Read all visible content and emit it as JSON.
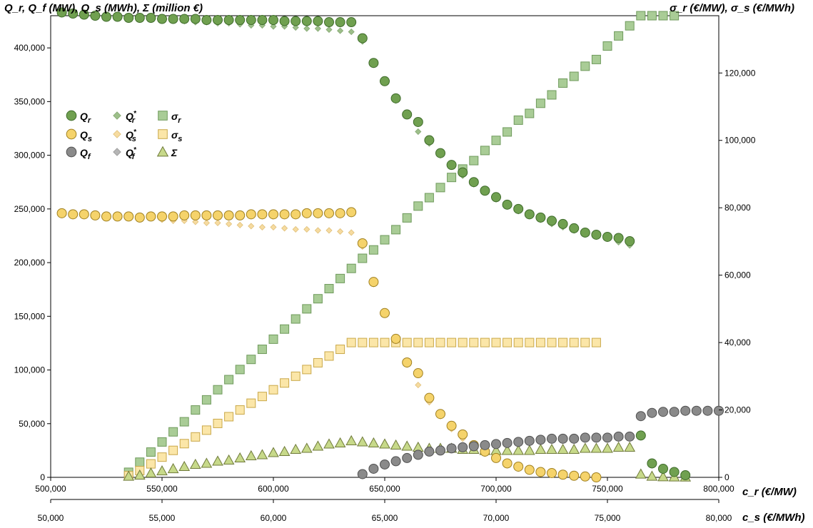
{
  "chart_data": {
    "type": "scatter",
    "left_axis_label": "Q_r, Q_f (MW), Q_s (MWh), Σ (million €)",
    "right_axis_label": "σ_r (€/MW), σ_s (€/MWh)",
    "x_primary_label": "c_r (€/MW)",
    "x_secondary_label": "c_s (€/MWh)",
    "x_primary_range": [
      500000,
      800000
    ],
    "x_secondary_range": [
      50000,
      80000
    ],
    "y_left_range": [
      0,
      430000
    ],
    "y_right_range": [
      0,
      137000
    ],
    "x_primary_ticks": [
      "500,000",
      "550,000",
      "600,000",
      "650,000",
      "700,000",
      "750,000",
      "800,000"
    ],
    "x_primary_tick_values": [
      500000,
      550000,
      600000,
      650000,
      700000,
      750000,
      800000
    ],
    "x_secondary_ticks": [
      "50,000",
      "55,000",
      "60,000",
      "65,000",
      "70,000",
      "75,000",
      "80,000"
    ],
    "y_left_ticks": [
      "0",
      "50,000",
      "100,000",
      "150,000",
      "200,000",
      "250,000",
      "300,000",
      "350,000",
      "400,000"
    ],
    "y_left_tick_values": [
      0,
      50000,
      100000,
      150000,
      200000,
      250000,
      300000,
      350000,
      400000
    ],
    "y_right_ticks": [
      "0",
      "20,000",
      "40,000",
      "60,000",
      "80,000",
      "100,000",
      "120,000"
    ],
    "y_right_tick_values": [
      0,
      20000,
      40000,
      60000,
      80000,
      100000,
      120000
    ],
    "legend": [
      {
        "label": "Q_r",
        "sym": "Q",
        "sub": "r",
        "sup": "",
        "marker": "circle",
        "fill": "#70a050",
        "stroke": "#3e6b2a"
      },
      {
        "label": "Q*_r",
        "sym": "Q",
        "sub": "r",
        "sup": "*",
        "marker": "diamond",
        "fill": "#9dbf8a",
        "stroke": "#86a873"
      },
      {
        "label": "σ_r",
        "sym": "σ",
        "sub": "r",
        "sup": "",
        "marker": "square",
        "fill": "#a9cc96",
        "stroke": "#6f9a5c"
      },
      {
        "label": "Q_s",
        "sym": "Q",
        "sub": "s",
        "sup": "",
        "marker": "circle",
        "fill": "#f5d36b",
        "stroke": "#a08020"
      },
      {
        "label": "Q*_s",
        "sym": "Q",
        "sub": "s",
        "sup": "*",
        "marker": "diamond",
        "fill": "#f6dba0",
        "stroke": "#e0c07a"
      },
      {
        "label": "σ_s",
        "sym": "σ",
        "sub": "s",
        "sup": "",
        "marker": "square",
        "fill": "#fbe6a8",
        "stroke": "#c9a84a"
      },
      {
        "label": "Q_f",
        "sym": "Q",
        "sub": "f",
        "sup": "",
        "marker": "circle",
        "fill": "#8a8a8a",
        "stroke": "#505050"
      },
      {
        "label": "Q*_f",
        "sym": "Q",
        "sub": "f",
        "sup": "*",
        "marker": "diamond",
        "fill": "#b5b5b5",
        "stroke": "#9a9a9a"
      },
      {
        "label": "Σ",
        "sym": "Σ",
        "sub": "",
        "sup": "",
        "marker": "triangle",
        "fill": "#c7d98a",
        "stroke": "#6f7a3a"
      }
    ],
    "series": [
      {
        "name": "Q_r",
        "axis": "left",
        "marker": "circle",
        "fill": "#70a050",
        "stroke": "#3e6b2a",
        "x": [
          505000,
          510000,
          515000,
          520000,
          525000,
          530000,
          535000,
          540000,
          545000,
          550000,
          555000,
          560000,
          565000,
          570000,
          575000,
          580000,
          585000,
          590000,
          595000,
          600000,
          605000,
          610000,
          615000,
          620000,
          625000,
          630000,
          635000,
          640000,
          645000,
          650000,
          655000,
          660000,
          665000,
          670000,
          675000,
          680000,
          685000,
          690000,
          695000,
          700000,
          705000,
          710000,
          715000,
          720000,
          725000,
          730000,
          735000,
          740000,
          745000,
          750000,
          755000,
          760000,
          765000,
          770000,
          775000,
          780000,
          785000
        ],
        "y": [
          433000,
          432000,
          431000,
          430000,
          429000,
          429000,
          428000,
          428000,
          428000,
          427000,
          427000,
          427000,
          427000,
          426000,
          426000,
          426000,
          426000,
          426000,
          426000,
          426000,
          425000,
          425000,
          425000,
          425000,
          424000,
          424000,
          424000,
          409000,
          386000,
          369000,
          353000,
          338000,
          331000,
          314000,
          302000,
          291000,
          284000,
          275000,
          267000,
          261000,
          254000,
          250000,
          245000,
          242000,
          239000,
          236000,
          232000,
          228000,
          226000,
          224000,
          223000,
          220000,
          39000,
          13000,
          8000,
          5000,
          2000
        ]
      },
      {
        "name": "Q*_r",
        "axis": "left",
        "marker": "diamond",
        "fill": "#9dbf8a",
        "stroke": "#86a873",
        "x": [
          555000,
          560000,
          565000,
          570000,
          575000,
          580000,
          585000,
          590000,
          595000,
          600000,
          605000,
          610000,
          615000,
          620000,
          625000,
          630000,
          635000,
          640000,
          645000,
          650000,
          655000,
          660000,
          665000,
          670000,
          675000,
          680000,
          685000,
          690000,
          695000,
          700000,
          705000,
          710000,
          715000,
          720000,
          725000,
          730000,
          735000,
          740000,
          745000,
          750000,
          755000,
          760000
        ],
        "y": [
          426000,
          425000,
          424000,
          424000,
          423000,
          423000,
          422000,
          421000,
          421000,
          420000,
          420000,
          419000,
          418000,
          418000,
          417000,
          416000,
          415000,
          406000,
          385000,
          368000,
          351000,
          337000,
          322000,
          311000,
          300000,
          290000,
          281000,
          273000,
          266000,
          259000,
          253000,
          248000,
          244000,
          240000,
          236000,
          233000,
          230000,
          227000,
          225000,
          223000,
          219000,
          216000
        ]
      },
      {
        "name": "Q_s",
        "axis": "left",
        "marker": "circle",
        "fill": "#f5d36b",
        "stroke": "#a08020",
        "x": [
          505000,
          510000,
          515000,
          520000,
          525000,
          530000,
          535000,
          540000,
          545000,
          550000,
          555000,
          560000,
          565000,
          570000,
          575000,
          580000,
          585000,
          590000,
          595000,
          600000,
          605000,
          610000,
          615000,
          620000,
          625000,
          630000,
          635000,
          640000,
          645000,
          650000,
          655000,
          660000,
          665000,
          670000,
          675000,
          680000,
          685000,
          690000,
          695000,
          700000,
          705000,
          710000,
          715000,
          720000,
          725000,
          730000,
          735000,
          740000,
          745000
        ],
        "y": [
          246000,
          245000,
          245000,
          244000,
          243000,
          243000,
          243000,
          242000,
          243000,
          243000,
          243000,
          244000,
          244000,
          244000,
          244000,
          244000,
          244000,
          245000,
          245000,
          245000,
          245000,
          245000,
          246000,
          246000,
          246000,
          246000,
          247000,
          218000,
          182000,
          153000,
          129000,
          107000,
          97000,
          74000,
          59000,
          48000,
          40000,
          30000,
          24000,
          18000,
          13000,
          10000,
          7000,
          5000,
          4000,
          2500,
          1500,
          800,
          0
        ]
      },
      {
        "name": "Q*_s",
        "axis": "left",
        "marker": "diamond",
        "fill": "#f6dba0",
        "stroke": "#e0c07a",
        "x": [
          550000,
          555000,
          560000,
          565000,
          570000,
          575000,
          580000,
          585000,
          590000,
          595000,
          600000,
          605000,
          610000,
          615000,
          620000,
          625000,
          630000,
          635000,
          640000,
          645000,
          650000,
          655000,
          660000,
          665000,
          670000,
          675000,
          680000,
          685000,
          690000,
          695000
        ],
        "y": [
          240000,
          239000,
          239000,
          238000,
          237000,
          237000,
          236000,
          235000,
          234000,
          233000,
          233000,
          232000,
          231000,
          231000,
          230000,
          230000,
          229000,
          228000,
          215000,
          180000,
          152000,
          127000,
          105000,
          86000,
          70000,
          57000,
          45000,
          36000,
          29000,
          22000
        ]
      },
      {
        "name": "Q_f",
        "axis": "left",
        "marker": "circle",
        "fill": "#8a8a8a",
        "stroke": "#505050",
        "x": [
          640000,
          645000,
          650000,
          655000,
          660000,
          665000,
          670000,
          675000,
          680000,
          685000,
          690000,
          695000,
          700000,
          705000,
          710000,
          715000,
          720000,
          725000,
          730000,
          735000,
          740000,
          745000,
          750000,
          755000,
          760000,
          765000,
          770000,
          775000,
          780000,
          785000,
          790000,
          795000,
          800000
        ],
        "y": [
          3000,
          8000,
          12000,
          15000,
          18000,
          21000,
          24000,
          25000,
          27000,
          28000,
          29000,
          30000,
          31000,
          32000,
          33000,
          34000,
          35000,
          36000,
          36000,
          36000,
          37000,
          37000,
          37000,
          38000,
          38000,
          57000,
          60000,
          61000,
          61000,
          62000,
          62000,
          62000,
          62000
        ]
      },
      {
        "name": "Σ",
        "axis": "left",
        "marker": "triangle",
        "fill": "#c7d98a",
        "stroke": "#6f7a3a",
        "x": [
          535000,
          540000,
          545000,
          550000,
          555000,
          560000,
          565000,
          570000,
          575000,
          580000,
          585000,
          590000,
          595000,
          600000,
          605000,
          610000,
          615000,
          620000,
          625000,
          630000,
          635000,
          640000,
          645000,
          650000,
          655000,
          660000,
          665000,
          670000,
          675000,
          680000,
          685000,
          690000,
          695000,
          700000,
          705000,
          710000,
          715000,
          720000,
          725000,
          730000,
          735000,
          740000,
          745000,
          750000,
          755000,
          760000,
          765000,
          770000,
          775000,
          780000,
          785000
        ],
        "y": [
          1000,
          2000,
          4000,
          6000,
          8000,
          10000,
          12000,
          13000,
          15000,
          16000,
          18000,
          20000,
          21000,
          23000,
          24000,
          26000,
          27000,
          29000,
          31000,
          32000,
          34000,
          33000,
          32000,
          31000,
          30000,
          29000,
          28000,
          27000,
          27000,
          27000,
          26000,
          26000,
          25000,
          25000,
          25000,
          25000,
          25000,
          26000,
          26000,
          26000,
          26000,
          27000,
          27000,
          27000,
          28000,
          28000,
          3000,
          1000,
          500,
          300,
          200
        ]
      },
      {
        "name": "σ_r",
        "axis": "right",
        "marker": "square",
        "fill": "#a9cc96",
        "stroke": "#6f9a5c",
        "x": [
          535000,
          540000,
          545000,
          550000,
          555000,
          560000,
          565000,
          570000,
          575000,
          580000,
          585000,
          590000,
          595000,
          600000,
          605000,
          610000,
          615000,
          620000,
          625000,
          630000,
          635000,
          640000,
          645000,
          650000,
          655000,
          660000,
          665000,
          670000,
          675000,
          680000,
          685000,
          690000,
          695000,
          700000,
          705000,
          710000,
          715000,
          720000,
          725000,
          730000,
          735000,
          740000,
          745000,
          750000,
          755000,
          760000,
          765000,
          770000,
          775000,
          780000
        ],
        "y": [
          1500,
          4500,
          7500,
          10500,
          13500,
          16500,
          20000,
          23000,
          26000,
          29000,
          32000,
          35000,
          38000,
          41000,
          44000,
          47000,
          50000,
          53000,
          56000,
          59000,
          62000,
          65000,
          67500,
          70500,
          73500,
          77000,
          80500,
          83000,
          86000,
          89000,
          91500,
          94000,
          97000,
          100000,
          102500,
          106000,
          108000,
          111000,
          113500,
          117000,
          119000,
          122000,
          124000,
          128000,
          131000,
          134000,
          137000,
          137000,
          137000,
          137000
        ]
      },
      {
        "name": "σ_s",
        "axis": "right",
        "marker": "square",
        "fill": "#fbe6a8",
        "stroke": "#c9a84a",
        "x": [
          535000,
          540000,
          545000,
          550000,
          555000,
          560000,
          565000,
          570000,
          575000,
          580000,
          585000,
          590000,
          595000,
          600000,
          605000,
          610000,
          615000,
          620000,
          625000,
          630000,
          635000,
          640000,
          645000,
          650000,
          655000,
          660000,
          665000,
          670000,
          675000,
          680000,
          685000,
          690000,
          695000,
          700000,
          705000,
          710000,
          715000,
          720000,
          725000,
          730000,
          735000,
          740000,
          745000
        ],
        "y": [
          500,
          2000,
          4000,
          6000,
          8000,
          10000,
          12000,
          14000,
          16000,
          18000,
          20000,
          22000,
          24000,
          26000,
          28000,
          30000,
          32000,
          34000,
          36000,
          38000,
          40000,
          40000,
          40000,
          40000,
          40000,
          40000,
          40000,
          40000,
          40000,
          40000,
          40000,
          40000,
          40000,
          40000,
          40000,
          40000,
          40000,
          40000,
          40000,
          40000,
          40000,
          40000,
          40000
        ]
      }
    ]
  }
}
